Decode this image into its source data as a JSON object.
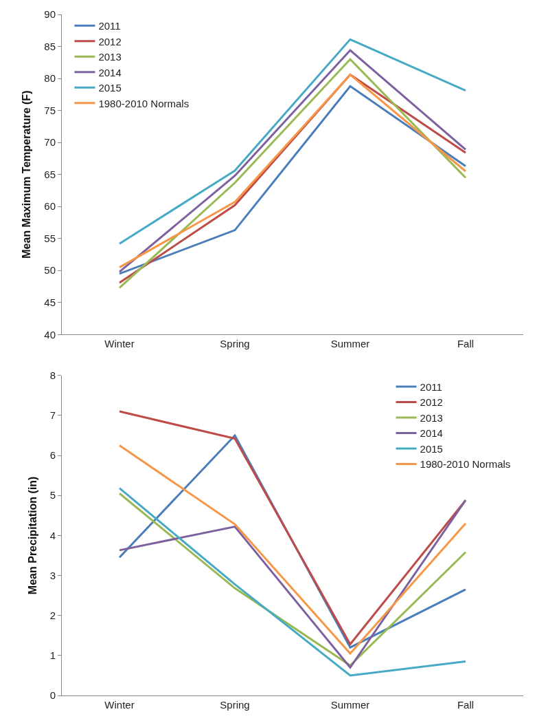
{
  "chart_data": [
    {
      "type": "line",
      "ylabel": "Mean Maximum Temperature (F)",
      "categories": [
        "Winter",
        "Spring",
        "Summer",
        "Fall"
      ],
      "ylim": [
        40,
        90
      ],
      "yticks": [
        40,
        45,
        50,
        55,
        60,
        65,
        70,
        75,
        80,
        85,
        90
      ],
      "legend": "top left",
      "marker": "none",
      "line_style": "solid",
      "series": [
        {
          "name": "2011",
          "color": "#4a7ebb",
          "values": [
            49.5,
            56.3,
            78.8,
            66.3
          ]
        },
        {
          "name": "2012",
          "color": "#be4b48",
          "values": [
            48.1,
            60.2,
            80.6,
            68.4
          ]
        },
        {
          "name": "2013",
          "color": "#98b954",
          "values": [
            47.3,
            63.7,
            83.0,
            64.5
          ]
        },
        {
          "name": "2014",
          "color": "#7d60a0",
          "values": [
            49.8,
            64.8,
            84.4,
            68.9
          ]
        },
        {
          "name": "2015",
          "color": "#46aac5",
          "values": [
            54.2,
            65.6,
            86.1,
            78.1
          ]
        },
        {
          "name": "1980-2010 Normals",
          "color": "#f79646",
          "values": [
            50.5,
            60.7,
            80.6,
            65.5
          ]
        }
      ]
    },
    {
      "type": "line",
      "ylabel": "Mean Precipitation (in)",
      "categories": [
        "Winter",
        "Spring",
        "Summer",
        "Fall"
      ],
      "ylim": [
        0,
        8
      ],
      "yticks": [
        0,
        1,
        2,
        3,
        4,
        5,
        6,
        7,
        8
      ],
      "legend": "top right",
      "marker": "none",
      "line_style": "solid",
      "series": [
        {
          "name": "2011",
          "color": "#4a7ebb",
          "values": [
            3.45,
            6.5,
            1.2,
            2.65
          ]
        },
        {
          "name": "2012",
          "color": "#be4b48",
          "values": [
            7.1,
            6.42,
            1.28,
            4.88
          ]
        },
        {
          "name": "2013",
          "color": "#98b954",
          "values": [
            5.05,
            2.68,
            0.75,
            3.58
          ]
        },
        {
          "name": "2014",
          "color": "#7d60a0",
          "values": [
            3.63,
            4.22,
            0.7,
            4.88
          ]
        },
        {
          "name": "2015",
          "color": "#46aac5",
          "values": [
            5.18,
            2.78,
            0.5,
            0.85
          ]
        },
        {
          "name": "1980-2010 Normals",
          "color": "#f79646",
          "values": [
            6.25,
            4.28,
            1.05,
            4.3
          ]
        }
      ]
    }
  ]
}
